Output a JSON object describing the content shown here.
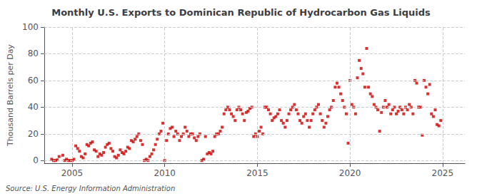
{
  "chart_data": {
    "type": "scatter",
    "title": "Monthly U.S. Exports to Dominican Republic of Hydrocarbon Gas Liquids",
    "y_label": "Thousand Barrels per Day",
    "annotation": "Source: U.S. Energy Information Administration",
    "color": "#cc0000",
    "marker": "square",
    "grid": true,
    "xlim": [
      2003.5,
      2026.2
    ],
    "xticks": [
      2005,
      2010,
      2015,
      2020,
      2025
    ],
    "ylim": [
      -2,
      100
    ],
    "yticks": [
      0,
      20,
      40,
      60,
      80,
      100
    ],
    "x": [
      2003.9,
      2004.0,
      2004.1,
      2004.2,
      2004.3,
      2004.5,
      2004.6,
      2004.7,
      2004.8,
      2004.9,
      2005.0,
      2005.1,
      2005.2,
      2005.3,
      2005.4,
      2005.5,
      2005.6,
      2005.7,
      2005.8,
      2005.9,
      2006.0,
      2006.1,
      2006.2,
      2006.3,
      2006.4,
      2006.5,
      2006.6,
      2006.7,
      2006.8,
      2006.9,
      2007.0,
      2007.1,
      2007.2,
      2007.3,
      2007.4,
      2007.5,
      2007.6,
      2007.7,
      2007.8,
      2007.9,
      2008.0,
      2008.1,
      2008.2,
      2008.3,
      2008.4,
      2008.5,
      2008.6,
      2008.7,
      2008.8,
      2008.9,
      2009.0,
      2009.1,
      2009.2,
      2009.3,
      2009.4,
      2009.5,
      2009.6,
      2009.7,
      2009.8,
      2009.9,
      2010.0,
      2010.1,
      2010.2,
      2010.3,
      2010.4,
      2010.5,
      2010.6,
      2010.7,
      2010.8,
      2010.9,
      2011.0,
      2011.1,
      2011.2,
      2011.3,
      2011.4,
      2011.5,
      2011.6,
      2011.7,
      2011.8,
      2011.9,
      2012.0,
      2012.1,
      2012.2,
      2012.3,
      2012.4,
      2012.5,
      2012.6,
      2012.7,
      2012.8,
      2012.9,
      2013.0,
      2013.1,
      2013.2,
      2013.3,
      2013.4,
      2013.5,
      2013.6,
      2013.7,
      2013.8,
      2013.9,
      2014.0,
      2014.1,
      2014.2,
      2014.3,
      2014.4,
      2014.5,
      2014.6,
      2014.7,
      2014.8,
      2014.9,
      2015.0,
      2015.1,
      2015.2,
      2015.3,
      2015.4,
      2015.5,
      2015.6,
      2015.7,
      2015.8,
      2015.9,
      2016.0,
      2016.1,
      2016.2,
      2016.3,
      2016.4,
      2016.5,
      2016.6,
      2016.7,
      2016.8,
      2016.9,
      2017.0,
      2017.1,
      2017.2,
      2017.3,
      2017.4,
      2017.5,
      2017.6,
      2017.7,
      2017.8,
      2017.9,
      2018.0,
      2018.1,
      2018.2,
      2018.3,
      2018.4,
      2018.5,
      2018.6,
      2018.7,
      2018.8,
      2018.9,
      2019.0,
      2019.1,
      2019.2,
      2019.3,
      2019.4,
      2019.5,
      2019.6,
      2019.7,
      2019.8,
      2019.9,
      2020.0,
      2020.1,
      2020.2,
      2020.3,
      2020.4,
      2020.5,
      2020.6,
      2020.7,
      2020.8,
      2020.9,
      2021.0,
      2021.1,
      2021.2,
      2021.3,
      2021.4,
      2021.5,
      2021.6,
      2021.7,
      2021.8,
      2021.9,
      2022.0,
      2022.1,
      2022.2,
      2022.3,
      2022.4,
      2022.5,
      2022.6,
      2022.7,
      2022.8,
      2022.9,
      2023.0,
      2023.1,
      2023.2,
      2023.3,
      2023.4,
      2023.5,
      2023.6,
      2023.7,
      2023.8,
      2023.9,
      2024.0,
      2024.1,
      2024.2,
      2024.3,
      2024.4,
      2024.5,
      2024.6,
      2024.7,
      2024.8,
      2024.9
    ],
    "values": [
      1,
      0,
      0,
      0.5,
      3,
      4,
      0,
      1,
      0,
      0,
      0,
      1,
      11,
      9,
      7,
      3,
      2,
      5,
      12,
      11,
      13,
      14,
      8,
      7,
      3,
      5,
      4,
      6,
      10,
      12,
      13,
      9,
      7,
      3,
      2,
      4,
      8,
      6,
      5,
      7,
      10,
      9,
      15,
      14,
      16,
      18,
      20,
      15,
      12,
      0,
      1,
      0,
      3,
      5,
      8,
      12,
      16,
      20,
      22,
      28,
      0,
      15,
      20,
      24,
      25,
      18,
      22,
      20,
      15,
      18,
      20,
      25,
      22,
      18,
      20,
      20,
      17,
      15,
      18,
      20,
      0,
      1,
      18,
      5,
      6,
      5,
      7,
      18,
      20,
      20,
      22,
      25,
      35,
      38,
      40,
      38,
      35,
      33,
      30,
      38,
      40,
      38,
      35,
      30,
      36,
      37,
      39,
      40,
      18,
      20,
      18,
      22,
      25,
      20,
      40,
      40,
      38,
      35,
      30,
      32,
      33,
      35,
      38,
      30,
      28,
      25,
      30,
      35,
      38,
      40,
      42,
      38,
      35,
      30,
      28,
      33,
      35,
      30,
      25,
      30,
      35,
      38,
      40,
      42,
      35,
      30,
      25,
      28,
      33,
      38,
      40,
      45,
      55,
      58,
      55,
      50,
      45,
      40,
      35,
      13,
      60,
      42,
      40,
      35,
      62,
      75,
      69,
      65,
      55,
      84,
      55,
      50,
      48,
      42,
      40,
      38,
      22,
      36,
      40,
      45,
      40,
      42,
      35,
      38,
      40,
      35,
      37,
      40,
      38,
      35,
      40,
      38,
      42,
      40,
      35,
      60,
      58,
      40,
      40,
      19,
      60,
      55,
      50,
      57,
      35,
      33,
      38,
      27,
      26,
      30
    ]
  }
}
